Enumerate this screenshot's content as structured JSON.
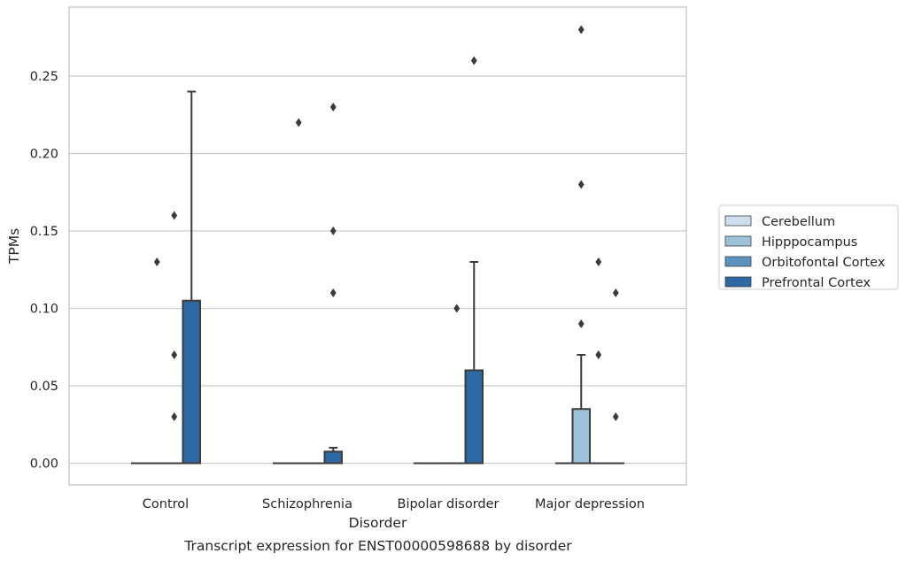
{
  "caption": "Transcript expression for ENST00000598688 by disorder",
  "chart_data": {
    "type": "box",
    "xlabel": "Disorder",
    "ylabel": "TPMs",
    "ylim": [
      -0.014,
      0.295
    ],
    "yticks": [
      "0.00",
      "0.05",
      "0.10",
      "0.15",
      "0.20",
      "0.25"
    ],
    "ytick_values": [
      0.0,
      0.05,
      0.1,
      0.15,
      0.2,
      0.25
    ],
    "grid": "horizontal",
    "legend_position": "right",
    "categories": [
      "Control",
      "Schizophrenia",
      "Bipolar disorder",
      "Major depression"
    ],
    "series": [
      {
        "name": "Cerebellum",
        "color": "#d0dfee",
        "boxes": [
          {
            "q1": 0,
            "median": 0,
            "q3": 0,
            "whisker_low": 0,
            "whisker_high": 0,
            "outliers": []
          },
          {
            "q1": 0,
            "median": 0,
            "q3": 0,
            "whisker_low": 0,
            "whisker_high": 0,
            "outliers": []
          },
          {
            "q1": 0,
            "median": 0,
            "q3": 0,
            "whisker_low": 0,
            "whisker_high": 0,
            "outliers": []
          },
          {
            "q1": 0,
            "median": 0,
            "q3": 0,
            "whisker_low": 0,
            "whisker_high": 0,
            "outliers": []
          }
        ]
      },
      {
        "name": "Hipppocampus",
        "color": "#9cc3da",
        "boxes": [
          {
            "q1": 0,
            "median": 0,
            "q3": 0,
            "whisker_low": 0,
            "whisker_high": 0,
            "outliers": [
              0.13
            ]
          },
          {
            "q1": 0,
            "median": 0,
            "q3": 0,
            "whisker_low": 0,
            "whisker_high": 0,
            "outliers": [
              0.22
            ]
          },
          {
            "q1": 0,
            "median": 0,
            "q3": 0,
            "whisker_low": 0,
            "whisker_high": 0,
            "outliers": []
          },
          {
            "q1": 0,
            "median": 0,
            "q3": 0.035,
            "whisker_low": 0,
            "whisker_high": 0.07,
            "outliers": [
              0.09,
              0.18,
              0.28
            ]
          }
        ]
      },
      {
        "name": "Orbitofontal Cortex",
        "color": "#5a93be",
        "boxes": [
          {
            "q1": 0,
            "median": 0,
            "q3": 0,
            "whisker_low": 0,
            "whisker_high": 0,
            "outliers": [
              0.03,
              0.07,
              0.16
            ]
          },
          {
            "q1": 0,
            "median": 0,
            "q3": 0,
            "whisker_low": 0,
            "whisker_high": 0,
            "outliers": []
          },
          {
            "q1": 0,
            "median": 0,
            "q3": 0,
            "whisker_low": 0,
            "whisker_high": 0,
            "outliers": [
              0.1
            ]
          },
          {
            "q1": 0,
            "median": 0,
            "q3": 0,
            "whisker_low": 0,
            "whisker_high": 0,
            "outliers": [
              0.07,
              0.13
            ]
          }
        ]
      },
      {
        "name": "Prefrontal Cortex",
        "color": "#2d6aa4",
        "boxes": [
          {
            "q1": 0,
            "median": 0,
            "q3": 0.105,
            "whisker_low": 0,
            "whisker_high": 0.24,
            "outliers": []
          },
          {
            "q1": 0,
            "median": 0,
            "q3": 0.0075,
            "whisker_low": 0,
            "whisker_high": 0.01,
            "outliers": [
              0.11,
              0.15,
              0.23
            ]
          },
          {
            "q1": 0,
            "median": 0,
            "q3": 0.06,
            "whisker_low": 0,
            "whisker_high": 0.13,
            "outliers": [
              0.26
            ]
          },
          {
            "q1": 0,
            "median": 0,
            "q3": 0,
            "whisker_low": 0,
            "whisker_high": 0,
            "outliers": [
              0.03,
              0.11
            ]
          }
        ]
      }
    ]
  }
}
